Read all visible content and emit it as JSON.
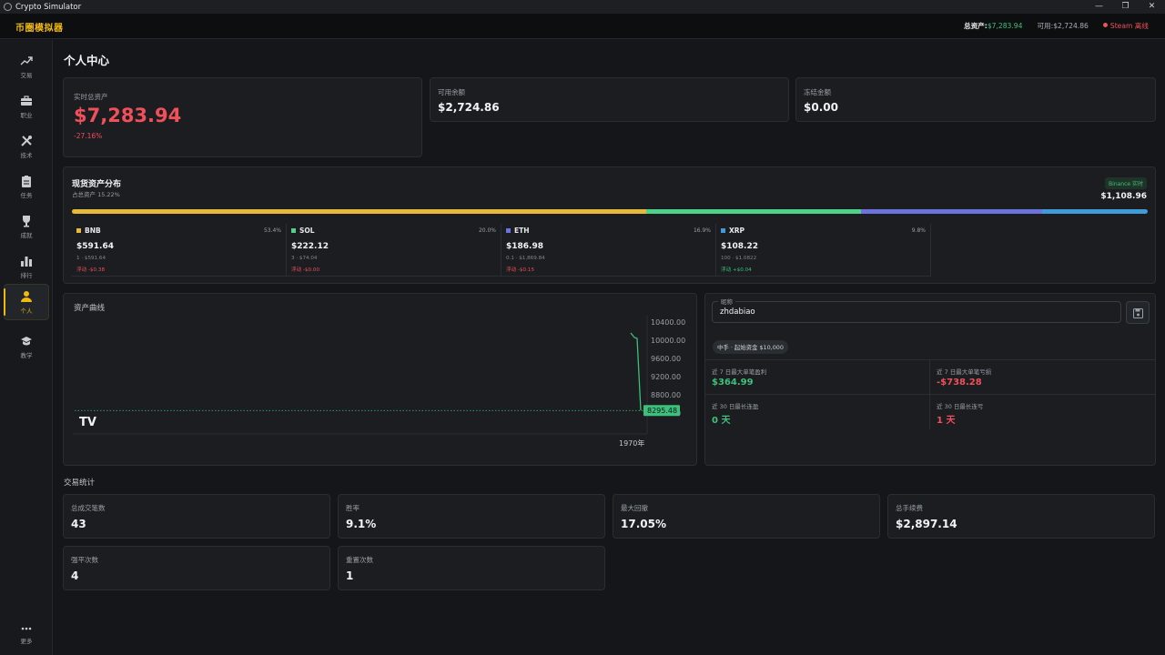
{
  "window": {
    "title": "Crypto Simulator"
  },
  "header": {
    "brand": "币圈模拟器",
    "total_assets_label": "总资产:",
    "total_assets_value": "$7,283.94",
    "available_label": "可用:",
    "available_value": "$2,724.86",
    "steam_label": "Steam 离线"
  },
  "sidebar": {
    "items": [
      {
        "label": "交易",
        "icon": "trend-line-icon"
      },
      {
        "label": "职业",
        "icon": "briefcase-icon"
      },
      {
        "label": "技术",
        "icon": "tools-icon"
      },
      {
        "label": "任务",
        "icon": "clipboard-icon"
      },
      {
        "label": "成就",
        "icon": "trophy-icon"
      },
      {
        "label": "排行",
        "icon": "bar-chart-icon"
      },
      {
        "label": "个人",
        "icon": "person-icon",
        "active": true
      },
      {
        "label": "教学",
        "icon": "graduation-cap-icon"
      }
    ],
    "more_label": "更多"
  },
  "page": {
    "title": "个人中心"
  },
  "summary": {
    "total_label": "实时总资产",
    "total_value": "$7,283.94",
    "total_change": "-27.16%",
    "available_label": "可用余额",
    "available_value": "$2,724.86",
    "frozen_label": "冻结金额",
    "frozen_value": "$0.00"
  },
  "spot": {
    "title": "现货资产分布",
    "subtitle": "占总资产 15.22%",
    "badge": "Binance 实时",
    "total": "$1,108.96",
    "assets": [
      {
        "symbol": "BNB",
        "pct": "53.4%",
        "value": "$591.64",
        "qty": "1 · $591.64",
        "pnl": "浮动 -$0.38",
        "color": "#e6b93a",
        "share": 53.4
      },
      {
        "symbol": "SOL",
        "pct": "20.0%",
        "value": "$222.12",
        "qty": "3 · $74.04",
        "pnl": "浮动 -$0.00",
        "color": "#4fd18b",
        "share": 20.0
      },
      {
        "symbol": "ETH",
        "pct": "16.9%",
        "value": "$186.98",
        "qty": "0.1 · $1,869.84",
        "pnl": "浮动 -$0.15",
        "color": "#6c73de",
        "share": 16.9
      },
      {
        "symbol": "XRP",
        "pct": "9.8%",
        "value": "$108.22",
        "qty": "100 · $1.0822",
        "pnl": "浮动 +$0.04",
        "color": "#3f9bd9",
        "share": 9.8
      }
    ]
  },
  "chart_data": {
    "type": "line",
    "title": "资产曲线",
    "xlabel": "1970年",
    "ylabel": "",
    "ylim": [
      8295.48,
      10400
    ],
    "y_ticks": [
      "10400.00",
      "10000.00",
      "9600.00",
      "9200.00",
      "8800.00",
      "8400.00"
    ],
    "y_tick_values": [
      10400,
      10000,
      9600,
      9200,
      8800,
      8400
    ],
    "last_value_label": "8295.48",
    "series": [
      {
        "values": [
          10000,
          9900,
          9880,
          8295.48
        ]
      }
    ],
    "line_color": "#3ec07c",
    "logo_text": "TV"
  },
  "profile": {
    "nickname_legend": "昵称",
    "nickname": "zhdabiao",
    "tier": "中手 · 起始资金 $10,000",
    "stats": [
      {
        "label": "近 7 日最大单笔盈利",
        "value": "$364.99",
        "tone": "green"
      },
      {
        "label": "近 7 日最大单笔亏损",
        "value": "-$738.28",
        "tone": "red"
      },
      {
        "label": "近 30 日最长连盈",
        "value": "0 天",
        "tone": "green"
      },
      {
        "label": "近 30 日最长连亏",
        "value": "1 天",
        "tone": "red"
      }
    ]
  },
  "trade_stats": {
    "title": "交易统计",
    "items": [
      {
        "label": "总成交笔数",
        "value": "43",
        "tone": "white"
      },
      {
        "label": "胜率",
        "value": "9.1%",
        "tone": "red"
      },
      {
        "label": "最大回撤",
        "value": "17.05%",
        "tone": "red"
      },
      {
        "label": "总手续费",
        "value": "$2,897.14",
        "tone": "white"
      },
      {
        "label": "强平次数",
        "value": "4",
        "tone": "red"
      },
      {
        "label": "重置次数",
        "value": "1",
        "tone": "white"
      }
    ]
  }
}
